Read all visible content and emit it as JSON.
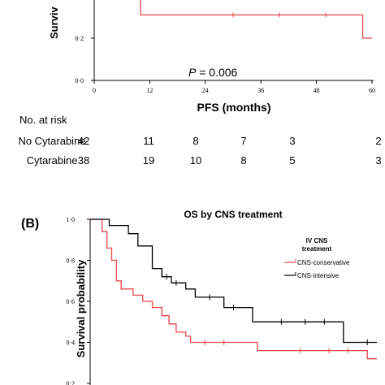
{
  "chart_data": [
    {
      "type": "line",
      "panel_label": "",
      "title": "",
      "xlabel": "PFS (months)",
      "ylabel": "Surviv",
      "xlim": [
        0,
        60
      ],
      "ylim": [
        0,
        0.4
      ],
      "x_ticks": [
        "0",
        "12",
        "24",
        "36",
        "48",
        "60"
      ],
      "y_ticks": [
        "0·0",
        "0·2"
      ],
      "annotation": {
        "italic": "P",
        "text": " = 0.006"
      },
      "series": [
        {
          "name": "",
          "color": "#e8454a",
          "points": [
            [
              0,
              0.4
            ],
            [
              5,
              0.4
            ],
            [
              5,
              0.385
            ],
            [
              10,
              0.385
            ],
            [
              10,
              0.31
            ],
            [
              58,
              0.31
            ],
            [
              58,
              0.2
            ],
            [
              60,
              0.2
            ]
          ],
          "censor_x": [
            30,
            40,
            50
          ]
        }
      ],
      "risk_table": {
        "header": "No. at risk",
        "rows": [
          {
            "label": "No Cytarabine",
            "values": [
              "42",
              "11",
              "8",
              "7",
              "3",
              "2"
            ]
          },
          {
            "label": "Cytarabine",
            "values": [
              "38",
              "19",
              "10",
              "8",
              "5",
              "3"
            ]
          }
        ]
      }
    },
    {
      "type": "line",
      "panel_label": "(B)",
      "title": "OS by CNS treatment",
      "xlabel": "",
      "ylabel": "Survival probability",
      "xlim": [
        0,
        60
      ],
      "ylim": [
        0.2,
        1.0
      ],
      "y_ticks": [
        "1·0",
        "0·8",
        "0·6",
        "0·4",
        "0·2"
      ],
      "legend": {
        "title_line1": "IV CNS",
        "title_line2": "treatment",
        "position": "right"
      },
      "series": [
        {
          "name": "CNS-conservative",
          "color": "#e8454a",
          "points": [
            [
              0,
              1.0
            ],
            [
              2.5,
              1.0
            ],
            [
              2.5,
              0.94
            ],
            [
              3.5,
              0.94
            ],
            [
              3.5,
              0.86
            ],
            [
              4.5,
              0.86
            ],
            [
              4.5,
              0.8
            ],
            [
              5.5,
              0.8
            ],
            [
              5.5,
              0.7
            ],
            [
              6.5,
              0.7
            ],
            [
              6.5,
              0.66
            ],
            [
              9,
              0.66
            ],
            [
              9,
              0.63
            ],
            [
              11,
              0.63
            ],
            [
              11,
              0.6
            ],
            [
              13,
              0.6
            ],
            [
              13,
              0.57
            ],
            [
              15,
              0.57
            ],
            [
              15,
              0.53
            ],
            [
              16.5,
              0.53
            ],
            [
              16.5,
              0.49
            ],
            [
              18,
              0.49
            ],
            [
              18,
              0.45
            ],
            [
              20,
              0.45
            ],
            [
              20,
              0.43
            ],
            [
              21,
              0.43
            ],
            [
              21,
              0.4
            ],
            [
              35,
              0.4
            ],
            [
              35,
              0.36
            ],
            [
              58,
              0.36
            ],
            [
              58,
              0.32
            ],
            [
              60,
              0.32
            ]
          ],
          "censor_x": [
            24,
            28,
            44,
            50,
            54
          ]
        },
        {
          "name": "CNS-intensive",
          "color": "#000000",
          "points": [
            [
              0,
              1.0
            ],
            [
              4,
              1.0
            ],
            [
              4,
              0.97
            ],
            [
              8,
              0.97
            ],
            [
              8,
              0.93
            ],
            [
              10,
              0.93
            ],
            [
              10,
              0.87
            ],
            [
              13,
              0.87
            ],
            [
              13,
              0.76
            ],
            [
              15,
              0.76
            ],
            [
              15,
              0.72
            ],
            [
              17,
              0.72
            ],
            [
              17,
              0.69
            ],
            [
              20,
              0.69
            ],
            [
              20,
              0.66
            ],
            [
              22,
              0.66
            ],
            [
              22,
              0.62
            ],
            [
              28,
              0.62
            ],
            [
              28,
              0.57
            ],
            [
              34,
              0.57
            ],
            [
              34,
              0.5
            ],
            [
              53,
              0.5
            ],
            [
              53,
              0.4
            ],
            [
              60,
              0.4
            ]
          ],
          "censor_x": [
            16,
            18,
            25,
            30,
            40,
            45,
            49,
            58
          ]
        }
      ]
    }
  ]
}
